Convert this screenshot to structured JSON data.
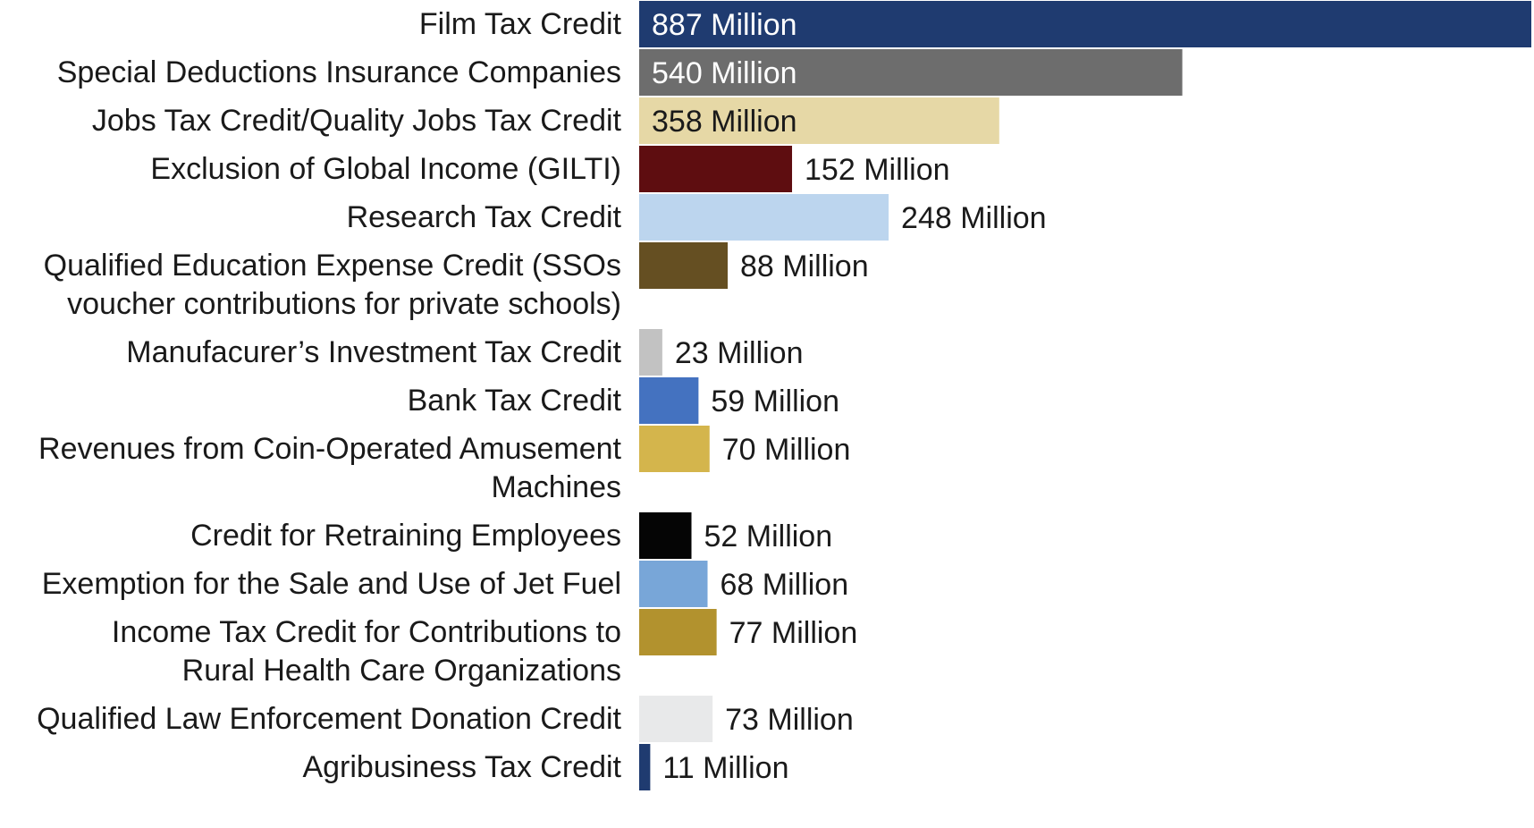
{
  "chart_data": {
    "type": "bar",
    "orientation": "horizontal",
    "title": "",
    "xlabel": "",
    "ylabel": "",
    "grid": false,
    "legend": "none",
    "unit_suffix": "Million",
    "xlim": [
      0,
      887
    ],
    "bars": [
      {
        "category": [
          "Film Tax Credit"
        ],
        "value": 887,
        "value_label": "887 Million",
        "color": "#1f3b70",
        "label_inside": true,
        "label_color": "#ffffff"
      },
      {
        "category": [
          "Special Deductions Insurance Companies"
        ],
        "value": 540,
        "value_label": "540 Million",
        "color": "#6d6d6d",
        "label_inside": true,
        "label_color": "#ffffff"
      },
      {
        "category": [
          "Jobs Tax Credit/Quality Jobs Tax Credit"
        ],
        "value": 358,
        "value_label": "358 Million",
        "color": "#e6d8a6",
        "label_inside": true,
        "label_color": "#1a1a1a"
      },
      {
        "category": [
          "Exclusion of Global Income (GILTI)"
        ],
        "value": 152,
        "value_label": "152 Million",
        "color": "#5e0d10",
        "label_inside": false,
        "label_color": "#1a1a1a"
      },
      {
        "category": [
          "Research Tax Credit"
        ],
        "value": 248,
        "value_label": "248 Million",
        "color": "#bcd5ee",
        "label_inside": false,
        "label_color": "#1a1a1a"
      },
      {
        "category": [
          "Qualified Education Expense Credit (SSOs",
          "voucher contributions for private schools)"
        ],
        "value": 88,
        "value_label": "88 Million",
        "color": "#654f22",
        "label_inside": false,
        "label_color": "#1a1a1a"
      },
      {
        "category": [
          "Manufacurer’s Investment Tax Credit"
        ],
        "value": 23,
        "value_label": "23 Million",
        "color": "#c2c2c2",
        "label_inside": false,
        "label_color": "#1a1a1a"
      },
      {
        "category": [
          "Bank Tax Credit"
        ],
        "value": 59,
        "value_label": "59 Million",
        "color": "#4472c0",
        "label_inside": false,
        "label_color": "#1a1a1a"
      },
      {
        "category": [
          "Revenues from Coin-Operated Amusement",
          "Machines"
        ],
        "value": 70,
        "value_label": "70 Million",
        "color": "#d4b54c",
        "label_inside": false,
        "label_color": "#1a1a1a"
      },
      {
        "category": [
          "Credit for Retraining Employees"
        ],
        "value": 52,
        "value_label": "52 Million",
        "color": "#050505",
        "label_inside": false,
        "label_color": "#1a1a1a"
      },
      {
        "category": [
          "Exemption for the Sale and Use of Jet Fuel"
        ],
        "value": 68,
        "value_label": "68 Million",
        "color": "#78a6d8",
        "label_inside": false,
        "label_color": "#1a1a1a"
      },
      {
        "category": [
          "Income Tax Credit for Contributions to",
          "Rural Health Care Organizations"
        ],
        "value": 77,
        "value_label": "77 Million",
        "color": "#b2922e",
        "label_inside": false,
        "label_color": "#1a1a1a"
      },
      {
        "category": [
          "Qualified Law Enforcement Donation Credit"
        ],
        "value": 73,
        "value_label": "73 Million",
        "color": "#e8e9ea",
        "label_inside": false,
        "label_color": "#1a1a1a"
      },
      {
        "category": [
          "Agribusiness Tax Credit"
        ],
        "value": 11,
        "value_label": "11 Million",
        "color": "#1f3b70",
        "label_inside": false,
        "label_color": "#1a1a1a"
      }
    ]
  }
}
